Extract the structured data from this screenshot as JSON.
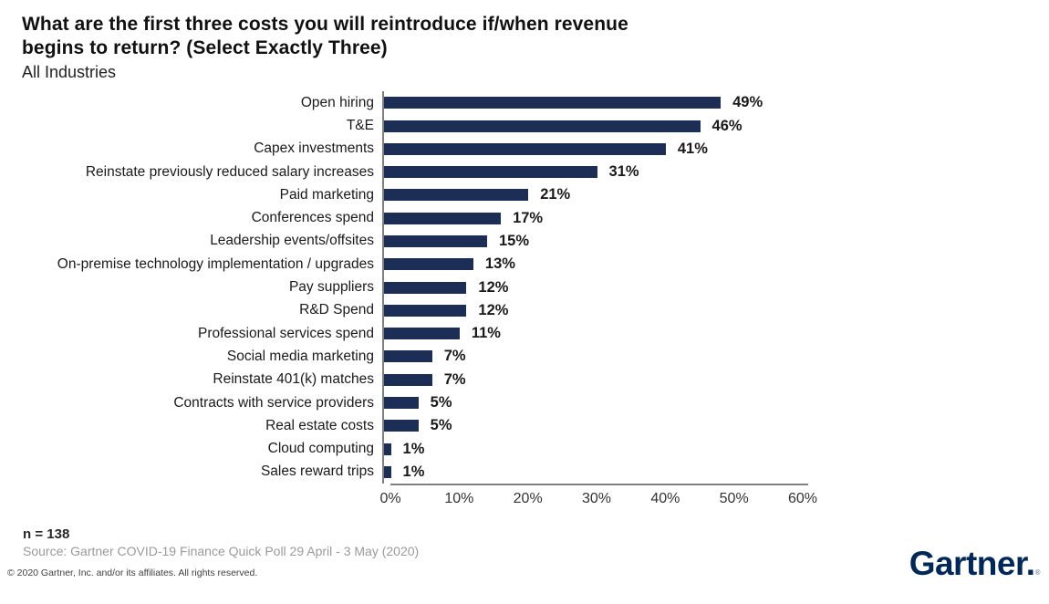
{
  "header": {
    "title_lines": [
      "What are the first three costs you will reintroduce if/when revenue",
      "begins to return? (Select Exactly Three)"
    ],
    "subtitle": "All Industries"
  },
  "chart_data": {
    "type": "bar",
    "orientation": "horizontal",
    "title": "What are the first three costs you will reintroduce if/when revenue begins to return? (Select Exactly Three)",
    "subtitle": "All Industries",
    "categories": [
      "Open hiring",
      "T&E",
      "Capex investments",
      "Reinstate previously reduced salary increases",
      "Paid marketing",
      "Conferences spend",
      "Leadership events/offsites",
      "On-premise technology implementation / upgrades",
      "Pay suppliers",
      "R&D Spend",
      "Professional services spend",
      "Social media marketing",
      "Reinstate 401(k) matches",
      "Contracts with service providers",
      "Real estate costs",
      "Cloud computing",
      "Sales reward trips"
    ],
    "values": [
      49,
      46,
      41,
      31,
      21,
      17,
      15,
      13,
      12,
      12,
      11,
      7,
      7,
      5,
      5,
      1,
      1
    ],
    "value_suffix": "%",
    "xlabel": "",
    "ylabel": "",
    "xlim": [
      0,
      60
    ],
    "x_ticks": [
      "0%",
      "10%",
      "20%",
      "30%",
      "40%",
      "50%",
      "60%"
    ],
    "grid": false,
    "legend": false,
    "bar_color": "#1c2e55",
    "axis_color": "#7f7f7f"
  },
  "footer": {
    "sample_size": "n = 138",
    "source": "Source: Gartner COVID-19 Finance Quick Poll 29 April - 3 May (2020)",
    "copyright": "© 2020 Gartner, Inc. and/or its affiliates. All rights reserved.",
    "logo_text": "Gartner.",
    "logo_reg": "®"
  }
}
